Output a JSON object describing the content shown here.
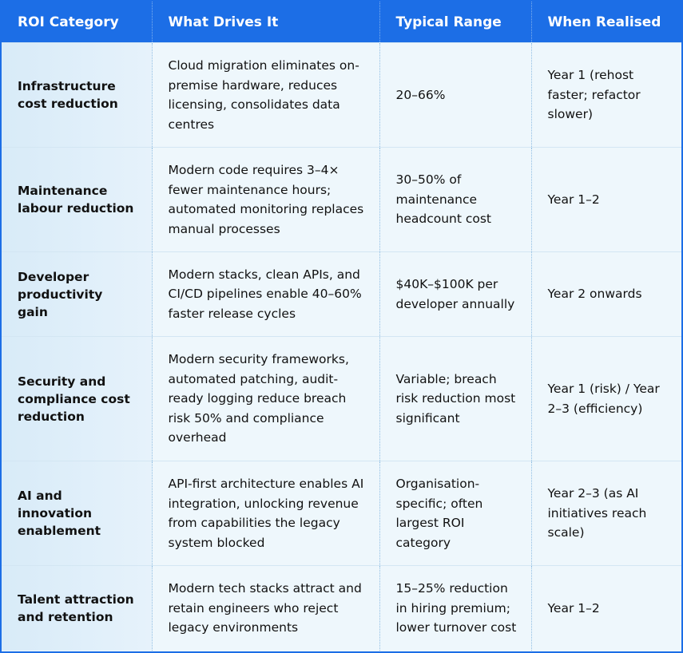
{
  "table": {
    "header": [
      "ROI Category",
      "What Drives It",
      "Typical Range",
      "When Realised"
    ],
    "rows": [
      [
        "Infrastructure cost reduction",
        "Cloud migration eliminates on-premise hardware, reduces licensing, consolidates data centres",
        "20–66%",
        "Year 1 (rehost faster; refactor slower)"
      ],
      [
        "Maintenance labour reduction",
        "Modern code requires 3–4× fewer maintenance hours; automated monitoring replaces manual processes",
        "30–50% of maintenance headcount cost",
        "Year 1–2"
      ],
      [
        "Developer productivity gain",
        "Modern stacks, clean APIs, and CI/CD pipelines enable 40–60% faster release cycles",
        "$40K–$100K per developer annually",
        "Year 2 onwards"
      ],
      [
        "Security and compliance cost reduction",
        "Modern security frameworks, automated patching, audit-ready logging reduce breach risk 50% and compliance overhead",
        "Variable; breach risk reduction most significant",
        "Year 1 (risk) / Year 2–3 (efficiency)"
      ],
      [
        "AI and innovation enablement",
        "API-first architecture enables AI integration, unlocking revenue from capabilities the legacy system blocked",
        "Organisation-specific; often largest ROI category",
        "Year 2–3 (as AI initiatives reach scale)"
      ],
      [
        "Talent attraction and retention",
        "Modern tech stacks attract and retain engineers who reject legacy environments",
        "15–25% reduction in hiring premium; lower turnover cost",
        "Year 1–2"
      ]
    ]
  }
}
